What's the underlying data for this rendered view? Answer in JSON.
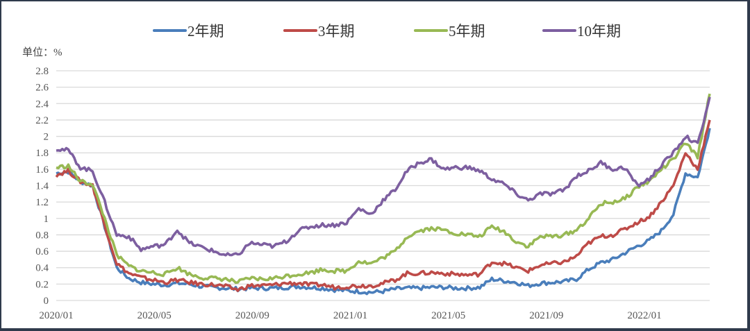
{
  "chart_data": {
    "type": "line",
    "title": "",
    "unit_label": "单位：%",
    "xlabel": "",
    "ylabel": "%",
    "ylim": [
      0,
      2.8
    ],
    "y_ticks": [
      "0",
      "0.2",
      "0.4",
      "0.6",
      "0.8",
      "1",
      "1.2",
      "1.4",
      "1.6",
      "1.8",
      "2",
      "2.2",
      "2.4",
      "2.6",
      "2.8"
    ],
    "x_ticks": [
      "2020/01",
      "2020/05",
      "2020/09",
      "2021/01",
      "2021/05",
      "2021/09",
      "2022/01"
    ],
    "grid": true,
    "legend_position": "top",
    "x": [
      "2020/01a",
      "2020/01b",
      "2020/02a",
      "2020/02b",
      "2020/03a",
      "2020/03b",
      "2020/04a",
      "2020/04b",
      "2020/05a",
      "2020/05b",
      "2020/06a",
      "2020/06b",
      "2020/07a",
      "2020/07b",
      "2020/08a",
      "2020/08b",
      "2020/09a",
      "2020/09b",
      "2020/10a",
      "2020/10b",
      "2020/11a",
      "2020/11b",
      "2020/12a",
      "2020/12b",
      "2021/01a",
      "2021/01b",
      "2021/02a",
      "2021/02b",
      "2021/03a",
      "2021/03b",
      "2021/04a",
      "2021/04b",
      "2021/05a",
      "2021/05b",
      "2021/06a",
      "2021/06b",
      "2021/07a",
      "2021/07b",
      "2021/08a",
      "2021/08b",
      "2021/09a",
      "2021/09b",
      "2021/10a",
      "2021/10b",
      "2021/11a",
      "2021/11b",
      "2021/12a",
      "2021/12b",
      "2022/01a",
      "2022/01b",
      "2022/02a",
      "2022/02b",
      "2022/03a",
      "2022/03b",
      "2022/04a"
    ],
    "series": [
      {
        "name": "2年期",
        "color": "#4a7ebb",
        "values": [
          1.55,
          1.57,
          1.45,
          1.4,
          0.9,
          0.4,
          0.27,
          0.22,
          0.2,
          0.19,
          0.21,
          0.2,
          0.17,
          0.16,
          0.15,
          0.14,
          0.15,
          0.15,
          0.15,
          0.16,
          0.17,
          0.16,
          0.15,
          0.13,
          0.12,
          0.11,
          0.1,
          0.11,
          0.14,
          0.15,
          0.15,
          0.16,
          0.16,
          0.15,
          0.15,
          0.16,
          0.26,
          0.24,
          0.22,
          0.18,
          0.21,
          0.22,
          0.23,
          0.26,
          0.38,
          0.46,
          0.5,
          0.58,
          0.66,
          0.73,
          0.85,
          1.05,
          1.55,
          1.5,
          2.1
        ]
      },
      {
        "name": "3年期",
        "color": "#be4b48",
        "values": [
          1.53,
          1.58,
          1.45,
          1.4,
          0.92,
          0.45,
          0.33,
          0.28,
          0.25,
          0.22,
          0.25,
          0.22,
          0.2,
          0.19,
          0.17,
          0.13,
          0.18,
          0.18,
          0.19,
          0.21,
          0.21,
          0.19,
          0.19,
          0.16,
          0.17,
          0.18,
          0.18,
          0.21,
          0.25,
          0.33,
          0.33,
          0.34,
          0.33,
          0.32,
          0.31,
          0.32,
          0.47,
          0.45,
          0.4,
          0.36,
          0.43,
          0.45,
          0.47,
          0.54,
          0.7,
          0.78,
          0.8,
          0.87,
          0.95,
          1.02,
          1.2,
          1.4,
          1.8,
          1.6,
          2.2
        ]
      },
      {
        "name": "5年期",
        "color": "#98b954",
        "values": [
          1.62,
          1.64,
          1.45,
          1.42,
          1.0,
          0.55,
          0.42,
          0.36,
          0.34,
          0.32,
          0.4,
          0.32,
          0.28,
          0.27,
          0.26,
          0.22,
          0.27,
          0.26,
          0.27,
          0.3,
          0.32,
          0.34,
          0.38,
          0.36,
          0.36,
          0.48,
          0.45,
          0.52,
          0.6,
          0.78,
          0.85,
          0.88,
          0.86,
          0.82,
          0.8,
          0.78,
          0.9,
          0.84,
          0.72,
          0.66,
          0.78,
          0.78,
          0.8,
          0.86,
          1.0,
          1.18,
          1.2,
          1.24,
          1.38,
          1.45,
          1.6,
          1.72,
          1.92,
          1.75,
          2.52
        ]
      },
      {
        "name": "10年期",
        "color": "#7d5fa0",
        "values": [
          1.85,
          1.83,
          1.62,
          1.58,
          1.2,
          0.8,
          0.78,
          0.62,
          0.66,
          0.68,
          0.86,
          0.7,
          0.65,
          0.6,
          0.55,
          0.55,
          0.7,
          0.68,
          0.66,
          0.72,
          0.85,
          0.9,
          0.92,
          0.92,
          0.95,
          1.12,
          1.05,
          1.22,
          1.35,
          1.58,
          1.68,
          1.72,
          1.6,
          1.62,
          1.62,
          1.58,
          1.48,
          1.42,
          1.3,
          1.22,
          1.3,
          1.3,
          1.35,
          1.52,
          1.58,
          1.68,
          1.6,
          1.62,
          1.4,
          1.48,
          1.65,
          1.8,
          2.0,
          1.9,
          2.48
        ]
      }
    ]
  },
  "legend": [
    {
      "label": "2年期",
      "color": "#4a7ebb"
    },
    {
      "label": "3年期",
      "color": "#be4b48"
    },
    {
      "label": "5年期",
      "color": "#98b954"
    },
    {
      "label": "10年期",
      "color": "#7d5fa0"
    }
  ]
}
